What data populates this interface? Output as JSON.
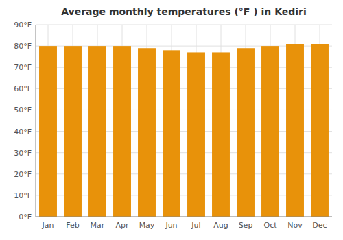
{
  "chart_data": {
    "type": "bar",
    "title": "Average monthly temperatures (°F ) in Kediri",
    "categories": [
      "Jan",
      "Feb",
      "Mar",
      "Apr",
      "May",
      "Jun",
      "Jul",
      "Aug",
      "Sep",
      "Oct",
      "Nov",
      "Dec"
    ],
    "values": [
      80,
      80,
      80,
      80,
      79,
      78,
      77,
      77,
      79,
      80,
      81,
      81
    ],
    "color": "#E8920A",
    "ylim": [
      0,
      90
    ],
    "yticks": [
      {
        "value": 0,
        "label": "0°F"
      },
      {
        "value": 10,
        "label": "10°F"
      },
      {
        "value": 20,
        "label": "20°F"
      },
      {
        "value": 30,
        "label": "30°F"
      },
      {
        "value": 40,
        "label": "40°F"
      },
      {
        "value": 50,
        "label": "50°F"
      },
      {
        "value": 60,
        "label": "60°F"
      },
      {
        "value": 70,
        "label": "70°F"
      },
      {
        "value": 80,
        "label": "80°F"
      },
      {
        "value": 90,
        "label": "90°F"
      }
    ],
    "grid": true
  }
}
